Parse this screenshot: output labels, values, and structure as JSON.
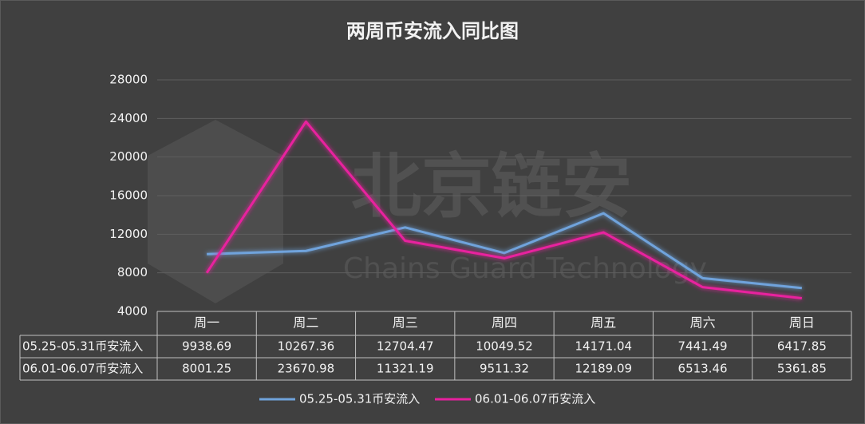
{
  "chart_data": {
    "type": "line",
    "title": "两周币安流入同比图",
    "watermark": {
      "cn": "北京链安",
      "en": "Chains Guard Technology"
    },
    "categories": [
      "周一",
      "周二",
      "周三",
      "周四",
      "周五",
      "周六",
      "周日"
    ],
    "series": [
      {
        "name": "05.25-05.31币安流入",
        "color": "#6fa3dc",
        "values": [
          9938.69,
          10267.36,
          12704.47,
          10049.52,
          14171.04,
          7441.49,
          6417.85
        ]
      },
      {
        "name": "06.01-06.07币安流入",
        "color": "#e8209e",
        "values": [
          8001.25,
          23670.98,
          11321.19,
          9511.32,
          12189.09,
          6513.46,
          5361.85
        ]
      }
    ],
    "ylim": [
      4000,
      28000
    ],
    "yticks": [
      4000,
      8000,
      12000,
      16000,
      20000,
      24000,
      28000
    ],
    "grid": true
  }
}
